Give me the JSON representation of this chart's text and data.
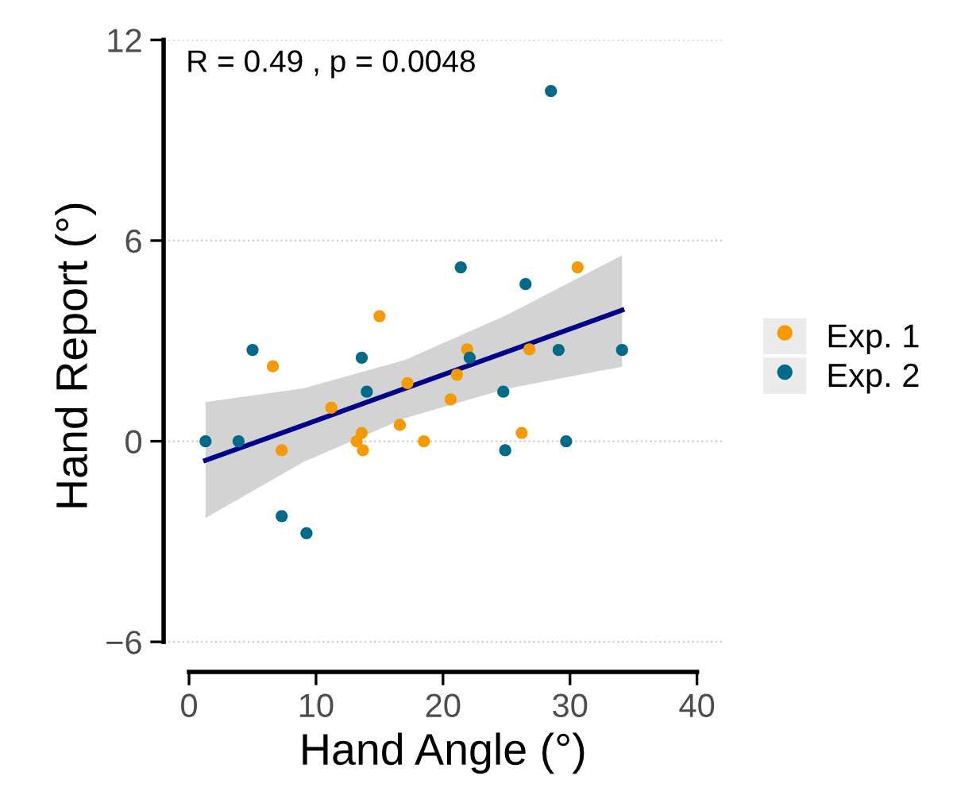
{
  "chart_data": {
    "type": "scatter",
    "xlabel": "Hand Angle (°)",
    "ylabel": "Hand Report (°)",
    "annotations": [
      "R = 0.49 , p = 0.0048"
    ],
    "xlim": [
      -2,
      42
    ],
    "ylim": [
      -6.9,
      12
    ],
    "xticks": [
      0,
      10,
      20,
      30,
      40
    ],
    "yticks": [
      -6,
      0,
      6,
      12
    ],
    "grid": "y",
    "legend": "right",
    "marker": "circle",
    "series": [
      {
        "name": "Exp. 1",
        "color": "#f79a00",
        "x": [
          15.0,
          30.6,
          6.6,
          21.9,
          26.8,
          21.1,
          17.2,
          20.6,
          11.2,
          16.6,
          13.6,
          13.2,
          13.7,
          7.3,
          18.5,
          26.2
        ],
        "values": [
          3.74,
          5.2,
          2.24,
          2.75,
          2.75,
          1.99,
          1.74,
          1.25,
          1.0,
          0.49,
          0.25,
          0,
          -0.27,
          -0.27,
          0,
          0.25
        ]
      },
      {
        "name": "Exp. 2",
        "color": "#006a89",
        "x": [
          1.3,
          3.9,
          5.0,
          7.3,
          9.25,
          13.6,
          14.0,
          22.1,
          24.75,
          24.9,
          29.1,
          29.7,
          34.1,
          21.4,
          26.5,
          28.5
        ],
        "values": [
          0,
          0,
          2.73,
          -2.24,
          -2.75,
          2.5,
          1.48,
          2.5,
          1.48,
          -0.27,
          2.73,
          0,
          2.73,
          5.2,
          4.7,
          10.47
        ]
      },
      {
        "type": "line",
        "marker": "none",
        "color": "#00008b",
        "x": [
          1.3,
          9,
          17,
          25,
          34.1
        ],
        "values": [
          -0.57,
          0.48,
          1.58,
          2.67,
          3.92
        ],
        "lower": [
          -2.3,
          -0.62,
          0.69,
          1.57,
          2.23
        ],
        "upper": [
          1.17,
          1.58,
          2.43,
          3.77,
          5.56
        ]
      }
    ]
  }
}
